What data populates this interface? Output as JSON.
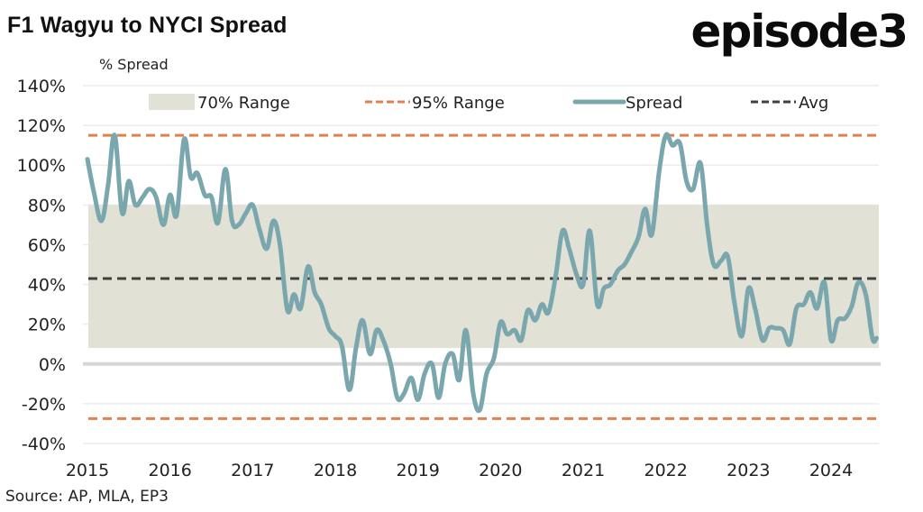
{
  "header": {
    "title": "F1 Wagyu to NYCI Spread",
    "logo": "episode3",
    "y_axis_unit_label": "% Spread"
  },
  "footer": {
    "source": "Source: AP, MLA, EP3"
  },
  "colors": {
    "spread": "#7aa7ae",
    "range70": "#e2e1d6",
    "range95": "#e0804f",
    "avg": "#3f3f3f",
    "zero_line": "#d6d6d6",
    "grid": "#ececec"
  },
  "chart_data": {
    "type": "line",
    "title": "F1 Wagyu to NYCI Spread",
    "xlabel": "",
    "ylabel": "% Spread",
    "ylim": [
      -40,
      140
    ],
    "xlim": [
      2015,
      2024.55
    ],
    "yticks": [
      140,
      120,
      100,
      80,
      60,
      40,
      20,
      0,
      -20,
      -40
    ],
    "ytick_labels": [
      "140%",
      "120%",
      "100%",
      "80%",
      "60%",
      "40%",
      "20%",
      "0%",
      "-20%",
      "-40%"
    ],
    "xticks": [
      2015,
      2016,
      2017,
      2018,
      2019,
      2020,
      2021,
      2022,
      2023,
      2024
    ],
    "xtick_labels": [
      "2015",
      "2016",
      "2017",
      "2018",
      "2019",
      "2020",
      "2021",
      "2022",
      "2023",
      "2024"
    ],
    "grid": true,
    "legend_position": "top",
    "legend": [
      {
        "label": "70% Range",
        "kind": "band"
      },
      {
        "label": "95% Range",
        "kind": "dashed"
      },
      {
        "label": "Spread",
        "kind": "line"
      },
      {
        "label": "Avg",
        "kind": "dashed"
      }
    ],
    "bands": {
      "range70": [
        8,
        80
      ]
    },
    "reference_lines": {
      "range95_upper": 115,
      "range95_lower": -27.5,
      "avg": 43
    },
    "series": [
      {
        "name": "Spread",
        "x": [
          2015.0,
          2015.08,
          2015.17,
          2015.25,
          2015.33,
          2015.42,
          2015.5,
          2015.58,
          2015.67,
          2015.75,
          2015.83,
          2015.92,
          2016.0,
          2016.08,
          2016.17,
          2016.25,
          2016.33,
          2016.42,
          2016.5,
          2016.58,
          2016.67,
          2016.75,
          2016.83,
          2016.92,
          2017.0,
          2017.08,
          2017.17,
          2017.25,
          2017.33,
          2017.42,
          2017.5,
          2017.58,
          2017.67,
          2017.75,
          2017.83,
          2017.92,
          2018.0,
          2018.08,
          2018.17,
          2018.25,
          2018.33,
          2018.42,
          2018.5,
          2018.58,
          2018.67,
          2018.75,
          2018.83,
          2018.92,
          2019.0,
          2019.08,
          2019.17,
          2019.25,
          2019.33,
          2019.42,
          2019.5,
          2019.58,
          2019.67,
          2019.75,
          2019.83,
          2019.92,
          2020.0,
          2020.08,
          2020.17,
          2020.25,
          2020.33,
          2020.42,
          2020.5,
          2020.58,
          2020.67,
          2020.75,
          2020.83,
          2020.92,
          2021.0,
          2021.08,
          2021.17,
          2021.25,
          2021.33,
          2021.42,
          2021.5,
          2021.58,
          2021.67,
          2021.75,
          2021.83,
          2021.92,
          2022.0,
          2022.08,
          2022.17,
          2022.25,
          2022.33,
          2022.42,
          2022.5,
          2022.58,
          2022.67,
          2022.75,
          2022.83,
          2022.92,
          2023.0,
          2023.08,
          2023.17,
          2023.25,
          2023.33,
          2023.42,
          2023.5,
          2023.58,
          2023.67,
          2023.75,
          2023.83,
          2023.92,
          2024.0,
          2024.08,
          2024.17,
          2024.25,
          2024.33,
          2024.42,
          2024.5,
          2024.55
        ],
        "values": [
          103,
          86,
          72,
          90,
          115,
          76,
          92,
          80,
          84,
          88,
          84,
          70,
          85,
          75,
          113,
          94,
          96,
          85,
          84,
          71,
          98,
          72,
          70,
          76,
          80,
          68,
          58,
          72,
          60,
          27,
          35,
          28,
          49,
          36,
          30,
          18,
          14,
          9,
          -13,
          8,
          22,
          5,
          17,
          12,
          0,
          -17,
          -15,
          -7,
          -18,
          -5,
          0,
          -17,
          0,
          5,
          -8,
          17,
          -15,
          -23,
          -5,
          3,
          21,
          15,
          17,
          12,
          27,
          22,
          30,
          26,
          45,
          67,
          58,
          45,
          40,
          67,
          30,
          38,
          40,
          47,
          50,
          56,
          64,
          78,
          65,
          97,
          115,
          110,
          111,
          92,
          88,
          101,
          70,
          50,
          52,
          54,
          31,
          14,
          38,
          28,
          12,
          18,
          18,
          17,
          10,
          28,
          30,
          36,
          28,
          41,
          12,
          22,
          23,
          29,
          41,
          35,
          13,
          13
        ]
      }
    ]
  }
}
